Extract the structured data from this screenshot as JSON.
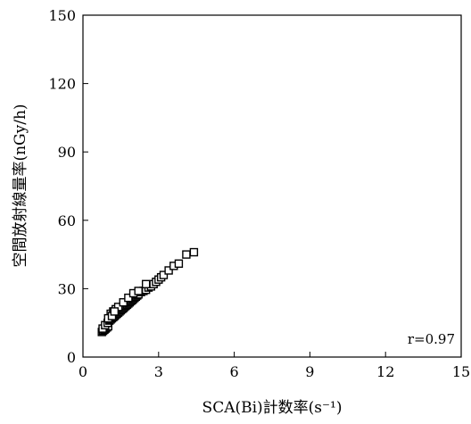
{
  "chart_data": {
    "type": "scatter",
    "title": "",
    "xlabel": "SCA(Bi)計数率(s⁻¹)",
    "ylabel": "空間放射線量率(nGy/h)",
    "xlim": [
      0,
      15
    ],
    "ylim": [
      0,
      150
    ],
    "xticks": [
      0,
      3,
      6,
      9,
      12,
      15
    ],
    "yticks": [
      0,
      30,
      60,
      90,
      120,
      150
    ],
    "xtick_labels": [
      "0",
      "3",
      "6",
      "9",
      "12",
      "15"
    ],
    "ytick_labels": [
      "0",
      "30",
      "60",
      "90",
      "120",
      "150"
    ],
    "grid": false,
    "marker": "open-square",
    "annotation": "r=0.97",
    "series": [
      {
        "x": [
          0.75,
          0.8,
          0.85,
          0.9,
          0.95,
          1.0,
          0.78,
          0.88,
          0.98,
          1.05,
          1.1,
          1.15,
          1.2,
          1.25,
          1.3,
          1.35,
          1.4,
          1.45,
          1.5,
          1.55,
          1.6,
          1.65,
          1.7,
          1.75,
          1.8,
          1.85,
          1.9,
          1.95,
          2.0,
          2.05,
          2.1,
          2.15,
          2.2,
          2.3,
          2.4,
          2.5,
          2.6,
          2.7,
          2.8,
          2.9,
          3.0,
          3.1,
          3.2,
          3.4,
          3.6,
          3.8,
          4.1,
          4.4,
          1.1,
          1.2,
          1.3,
          1.4,
          1.6,
          1.8,
          2.0,
          2.2,
          2.5,
          1.0,
          1.15,
          1.25
        ],
        "y": [
          11,
          11.5,
          12,
          12.5,
          13,
          13.5,
          12.5,
          14,
          15,
          16,
          16.5,
          17,
          17.5,
          18,
          18.5,
          19,
          19.5,
          20,
          20.5,
          21,
          21.5,
          22,
          22.5,
          23,
          23.5,
          24,
          24.5,
          25,
          25.5,
          26,
          26.5,
          27,
          27.5,
          28.5,
          29,
          29.5,
          30.5,
          31,
          32,
          33,
          34,
          35,
          36,
          38,
          40,
          41,
          45,
          46,
          19,
          20,
          21,
          22,
          24,
          26,
          28,
          29,
          32,
          17,
          18,
          20
        ]
      }
    ]
  }
}
